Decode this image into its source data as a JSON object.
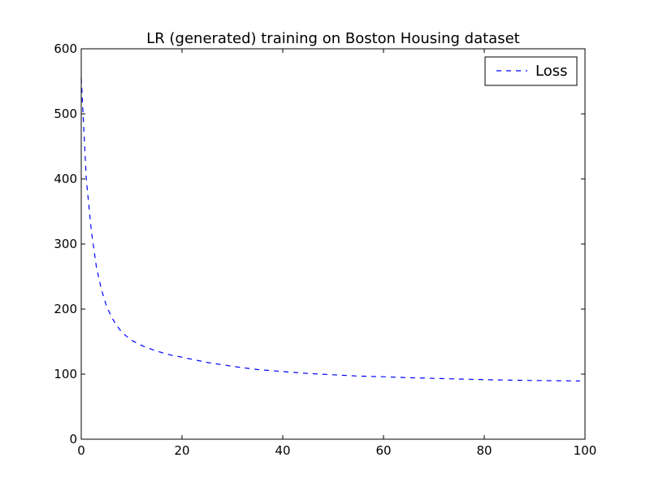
{
  "chart_data": {
    "type": "line",
    "title": "LR (generated) training on Boston Housing dataset",
    "xlabel": "",
    "ylabel": "",
    "xlim": [
      0,
      100
    ],
    "ylim": [
      0,
      600
    ],
    "xticks": [
      0,
      20,
      40,
      60,
      80,
      100
    ],
    "yticks": [
      0,
      100,
      200,
      300,
      400,
      500,
      600
    ],
    "grid": false,
    "legend": "top-right",
    "series": [
      {
        "name": "Loss",
        "color": "#0000ff",
        "linestyle": "dashed",
        "x": [
          0,
          1,
          2,
          3,
          4,
          5,
          6,
          7,
          8,
          9,
          10,
          12,
          14,
          16,
          18,
          20,
          25,
          30,
          35,
          40,
          45,
          50,
          55,
          60,
          65,
          70,
          75,
          80,
          85,
          90,
          95,
          99
        ],
        "y": [
          555,
          400,
          320,
          265,
          230,
          205,
          188,
          175,
          165,
          158,
          152,
          144,
          138,
          133,
          129,
          126,
          118,
          112,
          107,
          104,
          101,
          99,
          97,
          96,
          94.5,
          93.5,
          92.5,
          91.5,
          90.8,
          90.2,
          89.8,
          89.5
        ]
      }
    ]
  }
}
